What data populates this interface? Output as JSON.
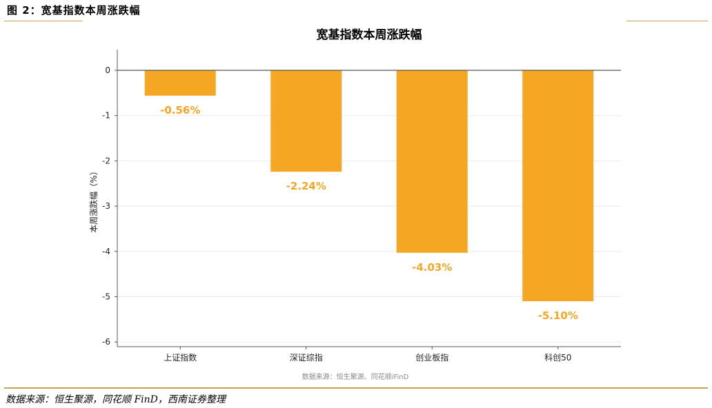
{
  "figure_label": "图 2：宽基指数本周涨跌幅",
  "source_note": "数据来源：恒生聚源，同花顺 FinD，西南证券整理",
  "colors": {
    "bar": "#F5A623",
    "rule": "#C9A04E",
    "grid": "#EAEAEA",
    "axis": "#555555"
  },
  "chart_data": {
    "type": "bar",
    "title": "宽基指数本周涨跌幅",
    "xlabel": "",
    "ylabel": "本周涨跌幅（%）",
    "categories": [
      "上证指数",
      "深证综指",
      "创业板指",
      "科创50"
    ],
    "values": [
      -0.56,
      -2.24,
      -4.03,
      -5.1
    ],
    "data_labels": [
      "-0.56%",
      "-2.24%",
      "-4.03%",
      "-5.10%"
    ],
    "ylim": [
      -6,
      0
    ],
    "yticks": [
      0,
      -1,
      -2,
      -3,
      -4,
      -5,
      -6
    ],
    "grid": true,
    "source": "数据来源：恒生聚源、同花顺iFinD"
  }
}
